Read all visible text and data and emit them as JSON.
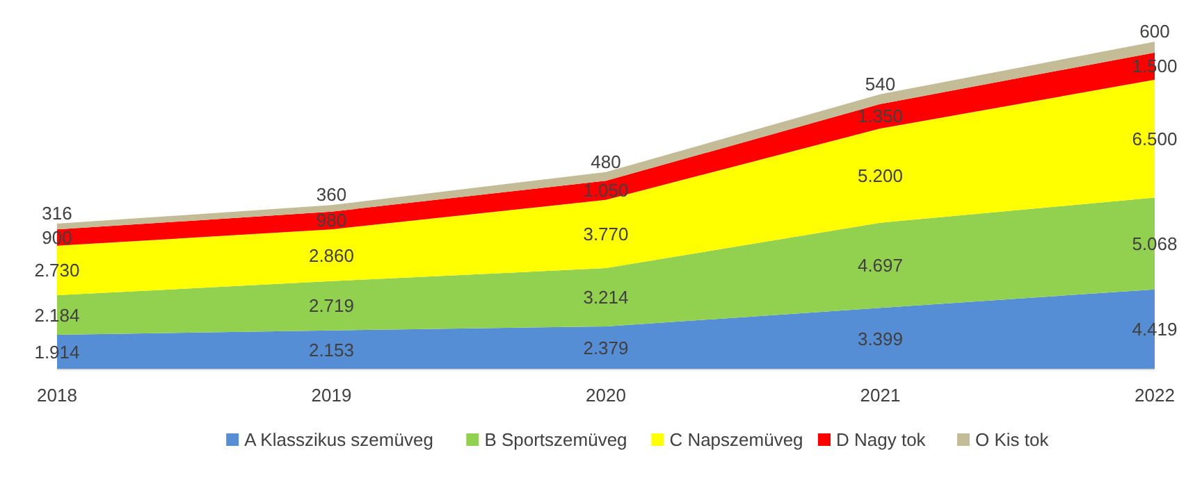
{
  "chart_data": {
    "type": "area",
    "stacked": true,
    "legend": "bottom",
    "categories": [
      "2018",
      "2019",
      "2020",
      "2021",
      "2022"
    ],
    "series": [
      {
        "name": "A Klasszikus szemüveg",
        "color": "#558ed5",
        "values": [
          1914,
          2153,
          2379,
          3399,
          4419
        ],
        "value_labels": [
          "1.914",
          "2.153",
          "2.379",
          "3.399",
          "4.419"
        ]
      },
      {
        "name": "B Sportszemüveg",
        "color": "#92d050",
        "values": [
          2184,
          2719,
          3214,
          4697,
          5068
        ],
        "value_labels": [
          "2.184",
          "2.719",
          "3.214",
          "4.697",
          "5.068"
        ]
      },
      {
        "name": "C Napszemüveg",
        "color": "#ffff00",
        "values": [
          2730,
          2860,
          3770,
          5200,
          6500
        ],
        "value_labels": [
          "2.730",
          "2.860",
          "3.770",
          "5.200",
          "6.500"
        ]
      },
      {
        "name": "D Nagy tok",
        "color": "#ff0000",
        "values": [
          900,
          980,
          1050,
          1350,
          1500
        ],
        "value_labels": [
          "900",
          "980",
          "1.050",
          "1.350",
          "1.500"
        ]
      },
      {
        "name": "O Kis tok",
        "color": "#c4bc96",
        "values": [
          316,
          360,
          480,
          540,
          600
        ],
        "value_labels": [
          "316",
          "360",
          "480",
          "540",
          "600"
        ]
      }
    ]
  }
}
